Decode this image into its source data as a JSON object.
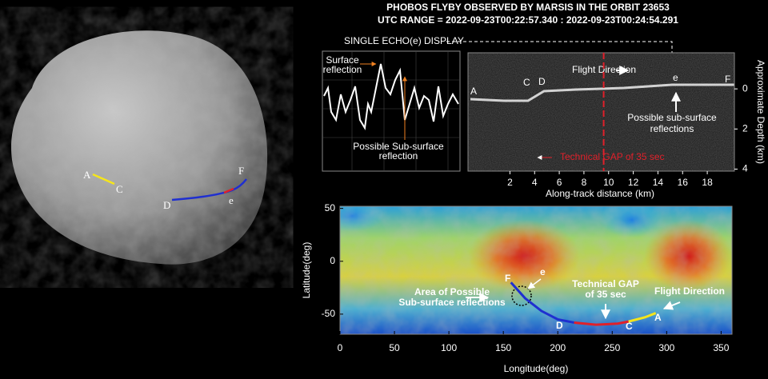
{
  "header": {
    "title": "PHOBOS FLYBY OBSERVED BY MARSIS IN THE ORBIT 23653",
    "subtitle": "UTC RANGE = 2022-09-23T00:22:57.340 : 2022-09-23T00:24:54.291"
  },
  "phobos_image": {
    "labels": [
      "A",
      "C",
      "D",
      "e",
      "F"
    ]
  },
  "single_echo": {
    "title": "SINGLE ECHO(e) DISPLAY",
    "surface_label": [
      "Surface",
      "reflection"
    ],
    "subsurface_label": [
      "Possible Sub-surface",
      "reflection"
    ]
  },
  "chart_data": [
    {
      "type": "radargram",
      "xlabel": "Along-track distance (km)",
      "ylabel": "Approximate Depth (km)",
      "xlim": [
        -1.4,
        20.2
      ],
      "xticks": [
        2,
        4,
        6,
        8,
        10,
        12,
        14,
        16,
        18
      ],
      "ylim": [
        -1.8,
        4.1
      ],
      "y_inverted": true,
      "yticks": [
        0,
        2,
        4
      ],
      "y_axis_side": "right",
      "gap_x": 9.6,
      "gap_color": "#e0202a",
      "point_labels": [
        "A",
        "C",
        "D",
        "e",
        "F"
      ],
      "flight_label": "Flight Direction",
      "subsurface_label": [
        "Possible sub-surface",
        "reflections"
      ],
      "gap_label": "Technical GAP of 35 sec"
    },
    {
      "type": "map",
      "xlabel": "Longitude(deg)",
      "ylabel": "Latitude(deg)",
      "xlim": [
        0,
        360
      ],
      "xticks": [
        0,
        50,
        100,
        150,
        200,
        250,
        300,
        350
      ],
      "ylim": [
        -69,
        52
      ],
      "yticks": [
        50,
        0,
        -50
      ],
      "series": [
        {
          "color": "#1f2fd0",
          "x": [
            157,
            170,
            185,
            200,
            215
          ],
          "values": [
            -20,
            -35,
            -47,
            -55,
            -58
          ]
        },
        {
          "color": "#e0202a",
          "x": [
            215,
            235,
            255,
            265
          ],
          "values": [
            -58,
            -60,
            -59,
            -57
          ]
        },
        {
          "color": "#f5e51b",
          "x": [
            265,
            280,
            290
          ],
          "values": [
            -57,
            -53,
            -49
          ]
        }
      ],
      "point_labels": [
        "F",
        "e",
        "D",
        "C",
        "A"
      ],
      "area_label": [
        "Area of Possible",
        "Sub-surface reflections"
      ],
      "gap_label": [
        "Technical GAP",
        "of 35 sec"
      ],
      "flight_label": "Flight Direction"
    }
  ]
}
